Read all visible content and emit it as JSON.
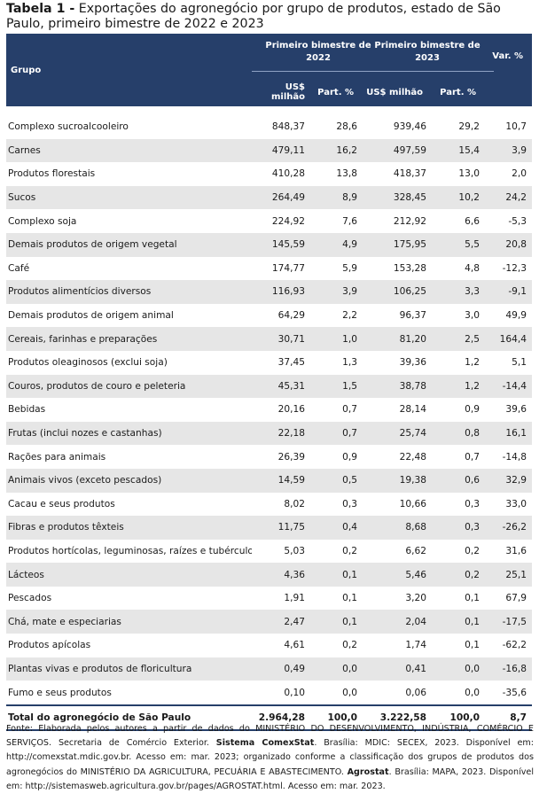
{
  "caption": {
    "label": "Tabela 1 -",
    "text": " Exportações do agronegócio por grupo de produtos, estado de São Paulo, primeiro bimestre de 2022 e 2023"
  },
  "header": {
    "grupo": "Grupo",
    "period1": "Primeiro bimestre de 2022",
    "period2": "Primeiro bimestre de 2023",
    "var": "Var. %",
    "usd": "US$ milhão",
    "part": "Part. %"
  },
  "rows": [
    {
      "grupo": "Complexo sucroalcooleiro",
      "v22": "848,37",
      "p22": "28,6",
      "v23": "939,46",
      "p23": "29,2",
      "var": "10,7"
    },
    {
      "grupo": "Carnes",
      "v22": "479,11",
      "p22": "16,2",
      "v23": "497,59",
      "p23": "15,4",
      "var": "3,9"
    },
    {
      "grupo": "Produtos florestais",
      "v22": "410,28",
      "p22": "13,8",
      "v23": "418,37",
      "p23": "13,0",
      "var": "2,0"
    },
    {
      "grupo": "Sucos",
      "v22": "264,49",
      "p22": "8,9",
      "v23": "328,45",
      "p23": "10,2",
      "var": "24,2"
    },
    {
      "grupo": "Complexo soja",
      "v22": "224,92",
      "p22": "7,6",
      "v23": "212,92",
      "p23": "6,6",
      "var": "-5,3"
    },
    {
      "grupo": "Demais produtos de origem vegetal",
      "v22": "145,59",
      "p22": "4,9",
      "v23": "175,95",
      "p23": "5,5",
      "var": "20,8"
    },
    {
      "grupo": "Café",
      "v22": "174,77",
      "p22": "5,9",
      "v23": "153,28",
      "p23": "4,8",
      "var": "-12,3"
    },
    {
      "grupo": "Produtos alimentícios diversos",
      "v22": "116,93",
      "p22": "3,9",
      "v23": "106,25",
      "p23": "3,3",
      "var": "-9,1"
    },
    {
      "grupo": "Demais produtos de origem animal",
      "v22": "64,29",
      "p22": "2,2",
      "v23": "96,37",
      "p23": "3,0",
      "var": "49,9"
    },
    {
      "grupo": "Cereais, farinhas e preparações",
      "v22": "30,71",
      "p22": "1,0",
      "v23": "81,20",
      "p23": "2,5",
      "var": "164,4"
    },
    {
      "grupo": "Produtos oleaginosos (exclui soja)",
      "v22": "37,45",
      "p22": "1,3",
      "v23": "39,36",
      "p23": "1,2",
      "var": "5,1"
    },
    {
      "grupo": "Couros, produtos de couro e peleteria",
      "v22": "45,31",
      "p22": "1,5",
      "v23": "38,78",
      "p23": "1,2",
      "var": "-14,4"
    },
    {
      "grupo": "Bebidas",
      "v22": "20,16",
      "p22": "0,7",
      "v23": "28,14",
      "p23": "0,9",
      "var": "39,6"
    },
    {
      "grupo": "Frutas (inclui nozes e castanhas)",
      "v22": "22,18",
      "p22": "0,7",
      "v23": "25,74",
      "p23": "0,8",
      "var": "16,1"
    },
    {
      "grupo": "Rações para animais",
      "v22": "26,39",
      "p22": "0,9",
      "v23": "22,48",
      "p23": "0,7",
      "var": "-14,8"
    },
    {
      "grupo": "Animais vivos (exceto pescados)",
      "v22": "14,59",
      "p22": "0,5",
      "v23": "19,38",
      "p23": "0,6",
      "var": "32,9"
    },
    {
      "grupo": "Cacau e seus produtos",
      "v22": "8,02",
      "p22": "0,3",
      "v23": "10,66",
      "p23": "0,3",
      "var": "33,0"
    },
    {
      "grupo": "Fibras e produtos têxteis",
      "v22": "11,75",
      "p22": "0,4",
      "v23": "8,68",
      "p23": "0,3",
      "var": "-26,2"
    },
    {
      "grupo": "Produtos hortícolas, leguminosas, raízes e tubérculos",
      "v22": "5,03",
      "p22": "0,2",
      "v23": "6,62",
      "p23": "0,2",
      "var": "31,6"
    },
    {
      "grupo": "Lácteos",
      "v22": "4,36",
      "p22": "0,1",
      "v23": "5,46",
      "p23": "0,2",
      "var": "25,1"
    },
    {
      "grupo": "Pescados",
      "v22": "1,91",
      "p22": "0,1",
      "v23": "3,20",
      "p23": "0,1",
      "var": "67,9"
    },
    {
      "grupo": "Chá, mate e especiarias",
      "v22": "2,47",
      "p22": "0,1",
      "v23": "2,04",
      "p23": "0,1",
      "var": "-17,5"
    },
    {
      "grupo": "Produtos apícolas",
      "v22": "4,61",
      "p22": "0,2",
      "v23": "1,74",
      "p23": "0,1",
      "var": "-62,2"
    },
    {
      "grupo": "Plantas vivas e produtos de floricultura",
      "v22": "0,49",
      "p22": "0,0",
      "v23": "0,41",
      "p23": "0,0",
      "var": "-16,8"
    },
    {
      "grupo": "Fumo e seus produtos",
      "v22": "0,10",
      "p22": "0,0",
      "v23": "0,06",
      "p23": "0,0",
      "var": "-35,6"
    }
  ],
  "total": {
    "grupo": "Total do agronegócio de São Paulo",
    "v22": "2.964,28",
    "p22": "100,0",
    "v23": "3.222,58",
    "p23": "100,0",
    "var": "8,7"
  },
  "note": {
    "t1": "Fonte: Elaborada pelos autores a partir de dados do MINISTÉRIO DO DESENVOLVIMENTO, INDÚSTRIA, COMÉRCIO E SERVIÇOS. Secretaria de Comércio Exterior. ",
    "b1": "Sistema ComexStat",
    "t2": ". Brasília: MDIC: SECEX, 2023. Disponível em: http://comexstat.mdic.gov.br. Acesso em: mar. 2023; organizado conforme a classificação dos grupos de produtos dos agronegócios do MINISTÉRIO DA AGRICULTURA, PECUÁRIA E ABASTECIMENTO. ",
    "b2": "Agrostat",
    "t3": ". Brasília: MAPA, 2023. Disponível em: http://sistemasweb.agricultura.gov.br/pages/AGROSTAT.html. Acesso em: mar. 2023."
  },
  "colors": {
    "header_bg": "#263f6a",
    "shade_bg": "#e6e6e6"
  }
}
